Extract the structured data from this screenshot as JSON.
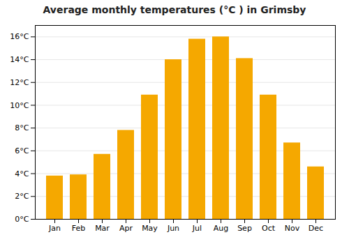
{
  "chart_data": {
    "type": "bar",
    "title": "Average monthly temperatures (°C ) in Grimsby",
    "categories": [
      "Jan",
      "Feb",
      "Mar",
      "Apr",
      "May",
      "Jun",
      "Jul",
      "Aug",
      "Sep",
      "Oct",
      "Nov",
      "Dec"
    ],
    "values": [
      3.8,
      3.9,
      5.7,
      7.8,
      10.9,
      14.0,
      15.8,
      16.0,
      14.1,
      10.9,
      6.7,
      4.6
    ],
    "color": "#F5A800",
    "ylim": [
      0,
      17
    ],
    "yticks": [
      {
        "value": 0,
        "label": "0°C"
      },
      {
        "value": 2,
        "label": "2°C"
      },
      {
        "value": 4,
        "label": "4°C"
      },
      {
        "value": 6,
        "label": "6°C"
      },
      {
        "value": 8,
        "label": "8°C"
      },
      {
        "value": 10,
        "label": "10°C"
      },
      {
        "value": 12,
        "label": "12°C"
      },
      {
        "value": 14,
        "label": "14°C"
      },
      {
        "value": 16,
        "label": "16°C"
      }
    ],
    "grid": true
  }
}
